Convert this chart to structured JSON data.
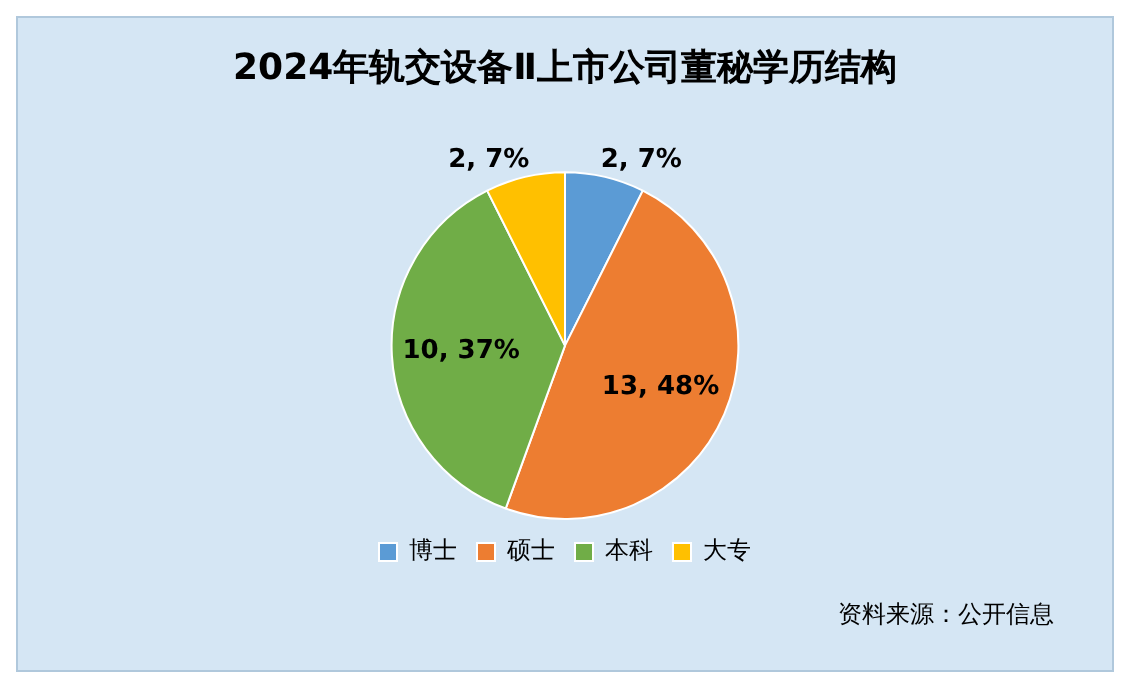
{
  "chart_data": {
    "type": "pie",
    "title": "2024年轨交设备Ⅱ上市公司董秘学历结构",
    "categories": [
      "博士",
      "硕士",
      "本科",
      "大专"
    ],
    "values": [
      2,
      13,
      10,
      2
    ],
    "colors": [
      "#5b9bd5",
      "#ed7d31",
      "#70ad47",
      "#ffc000"
    ],
    "value_labels": [
      "2, 7%",
      "13, 48%",
      "10, 37%",
      "2, 7%"
    ],
    "legend": "bottom",
    "annotations": [
      "资料来源：公开信息"
    ]
  }
}
